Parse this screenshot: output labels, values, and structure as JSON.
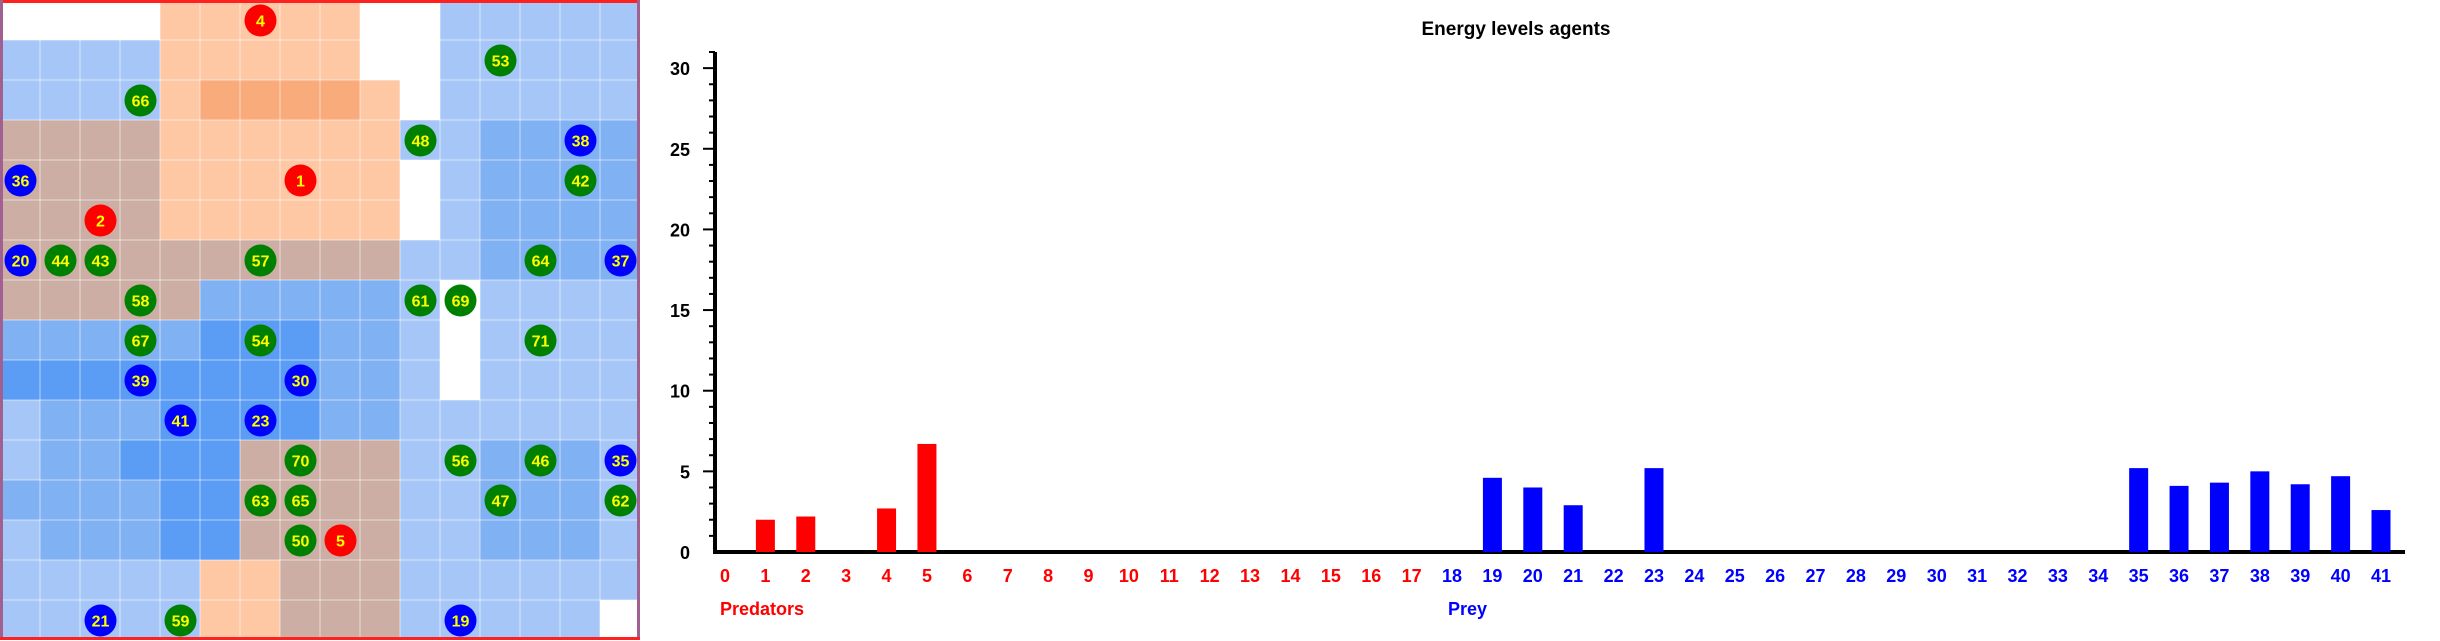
{
  "grid": {
    "rows": 16,
    "cols": 16,
    "legend_colors": {
      "W": "#ffffff",
      "B": "#a6c6f7",
      "M": "#80b1f2",
      "D": "#5b9cf5",
      "P": "#ffc8a5",
      "O": "#f9ab7c",
      "G": "#ccaea5",
      "E": "#ccb1a5"
    },
    "cells": [
      "WWWWPPPPPWWBBBBB",
      "BBBBPPPPPWWBBBBB",
      "BBBBPOOOOPWBBBBB",
      "GGGGPPPPPPBBMMMM",
      "GGGGPPPPPPWBMMMM",
      "GGGGPPPPPPWBMMMM",
      "GGGGGGGGGGBBMMMM",
      "GGGGGMMMMMBWBBBB",
      "MMMMMDDDMMBWBBBB",
      "DDDDDDDDMMBWBBBB",
      "BMMMDDDDMMBBBBBB",
      "BMMDDDGGGGBBMMMB",
      "MMMMDDGGGGBBMMMB",
      "BMMMDDGGGGBBMMMB",
      "BBBBBPPGGGBBBBBB",
      "BBBBBPPGGGBBBBBW"
    ],
    "border_color_left": "#a06090",
    "border_color_top": "#ff2020",
    "agents": [
      {
        "id": "4",
        "type": "predator",
        "col": 6,
        "row": 0
      },
      {
        "id": "1",
        "type": "predator",
        "col": 7,
        "row": 4
      },
      {
        "id": "2",
        "type": "predator",
        "col": 2,
        "row": 5
      },
      {
        "id": "5",
        "type": "predator",
        "col": 8,
        "row": 13
      },
      {
        "id": "36",
        "type": "prey",
        "col": 0,
        "row": 4
      },
      {
        "id": "38",
        "type": "prey",
        "col": 14,
        "row": 3
      },
      {
        "id": "20",
        "type": "prey",
        "col": 0,
        "row": 6
      },
      {
        "id": "37",
        "type": "prey",
        "col": 15,
        "row": 6
      },
      {
        "id": "39",
        "type": "prey",
        "col": 3,
        "row": 9
      },
      {
        "id": "30",
        "type": "prey",
        "col": 7,
        "row": 9
      },
      {
        "id": "41",
        "type": "prey",
        "col": 4,
        "row": 10
      },
      {
        "id": "23",
        "type": "prey",
        "col": 6,
        "row": 10
      },
      {
        "id": "35",
        "type": "prey",
        "col": 15,
        "row": 11
      },
      {
        "id": "21",
        "type": "prey",
        "col": 2,
        "row": 15
      },
      {
        "id": "19",
        "type": "prey",
        "col": 11,
        "row": 15
      },
      {
        "id": "53",
        "type": "plant",
        "col": 12,
        "row": 1
      },
      {
        "id": "66",
        "type": "plant",
        "col": 3,
        "row": 2
      },
      {
        "id": "48",
        "type": "plant",
        "col": 10,
        "row": 3
      },
      {
        "id": "42",
        "type": "plant",
        "col": 14,
        "row": 4
      },
      {
        "id": "44",
        "type": "plant",
        "col": 1,
        "row": 6
      },
      {
        "id": "43",
        "type": "plant",
        "col": 2,
        "row": 6
      },
      {
        "id": "57",
        "type": "plant",
        "col": 6,
        "row": 6
      },
      {
        "id": "64",
        "type": "plant",
        "col": 13,
        "row": 6
      },
      {
        "id": "58",
        "type": "plant",
        "col": 3,
        "row": 7
      },
      {
        "id": "61",
        "type": "plant",
        "col": 10,
        "row": 7
      },
      {
        "id": "69",
        "type": "plant",
        "col": 11,
        "row": 7
      },
      {
        "id": "67",
        "type": "plant",
        "col": 3,
        "row": 8
      },
      {
        "id": "54",
        "type": "plant",
        "col": 6,
        "row": 8
      },
      {
        "id": "71",
        "type": "plant",
        "col": 13,
        "row": 8
      },
      {
        "id": "70",
        "type": "plant",
        "col": 7,
        "row": 11
      },
      {
        "id": "56",
        "type": "plant",
        "col": 11,
        "row": 11
      },
      {
        "id": "46",
        "type": "plant",
        "col": 13,
        "row": 11
      },
      {
        "id": "63",
        "type": "plant",
        "col": 6,
        "row": 12
      },
      {
        "id": "65",
        "type": "plant",
        "col": 7,
        "row": 12
      },
      {
        "id": "47",
        "type": "plant",
        "col": 12,
        "row": 12
      },
      {
        "id": "62",
        "type": "plant",
        "col": 15,
        "row": 12
      },
      {
        "id": "50",
        "type": "plant",
        "col": 7,
        "row": 13
      },
      {
        "id": "59",
        "type": "plant",
        "col": 4,
        "row": 15
      }
    ],
    "agent_colors": {
      "predator": {
        "fill": "#ff0000",
        "text": "#ffff00"
      },
      "prey": {
        "fill": "#0000ff",
        "text": "#ffff00"
      },
      "plant": {
        "fill": "#008000",
        "text": "#ffff00"
      }
    }
  },
  "chart_data": {
    "type": "bar",
    "title": "Energy levels agents",
    "ylim": [
      0,
      31
    ],
    "yticks": [
      0,
      5,
      10,
      15,
      20,
      25,
      30
    ],
    "categories": [
      "0",
      "1",
      "2",
      "3",
      "4",
      "5",
      "6",
      "7",
      "8",
      "9",
      "10",
      "11",
      "12",
      "13",
      "14",
      "15",
      "16",
      "17",
      "18",
      "19",
      "20",
      "21",
      "22",
      "23",
      "24",
      "25",
      "26",
      "27",
      "28",
      "29",
      "30",
      "31",
      "32",
      "33",
      "34",
      "35",
      "36",
      "37",
      "38",
      "39",
      "40",
      "41"
    ],
    "values": [
      0,
      2.0,
      2.2,
      0,
      2.7,
      6.7,
      0,
      0,
      0,
      0,
      0,
      0,
      0,
      0,
      0,
      0,
      0,
      0,
      0,
      4.6,
      4.0,
      2.9,
      0,
      5.2,
      0,
      0,
      0,
      0,
      0,
      0,
      0,
      0,
      0,
      0,
      0,
      5.2,
      4.1,
      4.3,
      5.0,
      4.2,
      4.7,
      2.6
    ],
    "predator_ids": [
      "0",
      "1",
      "2",
      "3",
      "4",
      "5",
      "6",
      "7",
      "8",
      "9",
      "10",
      "11",
      "12",
      "13",
      "14",
      "15",
      "16",
      "17"
    ],
    "prey_ids": [
      "18",
      "19",
      "20",
      "21",
      "22",
      "23",
      "24",
      "25",
      "26",
      "27",
      "28",
      "29",
      "30",
      "31",
      "32",
      "33",
      "34",
      "35",
      "36",
      "37",
      "38",
      "39",
      "40",
      "41"
    ],
    "group_labels": {
      "predators": "Predators",
      "prey": "Prey"
    },
    "colors": {
      "predator": "#ff0000",
      "prey": "#0000ff",
      "axis": "#000000"
    }
  }
}
